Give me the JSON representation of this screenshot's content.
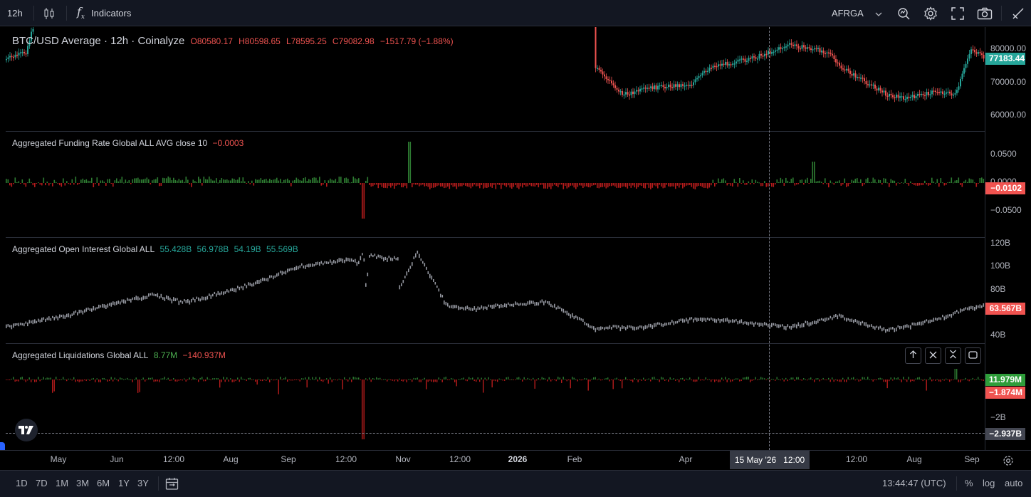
{
  "toolbar": {
    "interval": "12h",
    "indicators_label": "Indicators",
    "fx_label": "f",
    "fx_sub": "x",
    "account": "AFRGA",
    "icons": [
      "candles-icon",
      "fx-icon",
      "chevron-down-icon",
      "alert-icon",
      "gear-icon",
      "fullscreen-icon",
      "camera-icon",
      "draw-icon"
    ]
  },
  "main_pane": {
    "symbol_title": "BTC/USD Average · 12h · Coinalyze",
    "o_label": "O",
    "o": "80580.17",
    "h_label": "H",
    "h": "80598.65",
    "l_label": "L",
    "l": "78595.25",
    "c_label": "C",
    "c": "79082.98",
    "change": "−1517.79 (−1.88%)",
    "scale_ticks": [
      "80000.00",
      "70000.00",
      "60000.00"
    ],
    "last_price": "77183.44"
  },
  "funding_pane": {
    "title": "Aggregated Funding Rate Global ALL AVG close 10",
    "value": "−0.0003",
    "scale_ticks": [
      "0.0500",
      "0.0000",
      "−0.0500"
    ],
    "last_value": "−0.0102"
  },
  "oi_pane": {
    "title": "Aggregated Open Interest Global ALL",
    "o": "55.428B",
    "h": "56.978B",
    "l": "54.19B",
    "c": "55.569B",
    "scale_ticks": [
      "120B",
      "100B",
      "80B",
      "40B"
    ],
    "last_value": "63.567B"
  },
  "liq_pane": {
    "title": "Aggregated Liquidations Global ALL",
    "long": "8.77M",
    "short": "−140.937M",
    "scale_ticks": [
      "−2B"
    ],
    "badge_long": "11.979M",
    "badge_short": "−1.874M",
    "crosshair_value": "−2.937B",
    "pane_buttons": [
      "arrow-up-icon",
      "close-icon",
      "collapse-icon",
      "maximize-icon"
    ]
  },
  "time_axis": {
    "labels": [
      "May",
      "Jun",
      "12:00",
      "Aug",
      "Sep",
      "12:00",
      "Nov",
      "12:00",
      "2026",
      "Feb",
      "Apr",
      "12:00",
      "Aug",
      "Sep"
    ],
    "crosshair_time": "15 May '26   12:00"
  },
  "bottom_bar": {
    "ranges": [
      "1D",
      "7D",
      "1M",
      "3M",
      "6M",
      "1Y",
      "3Y"
    ],
    "clock": "13:44:47 (UTC)",
    "percent": "%",
    "log": "log",
    "auto": "auto"
  },
  "colors": {
    "bg": "#000000",
    "up": "#26a69a",
    "down": "#ef5350",
    "bar_up": "#2e7d32",
    "bar_down": "#b71c1c",
    "oi_line": "#9598a1",
    "badge_green": "#26a69a",
    "badge_red": "#f05350",
    "badge_gray": "#434651"
  }
}
